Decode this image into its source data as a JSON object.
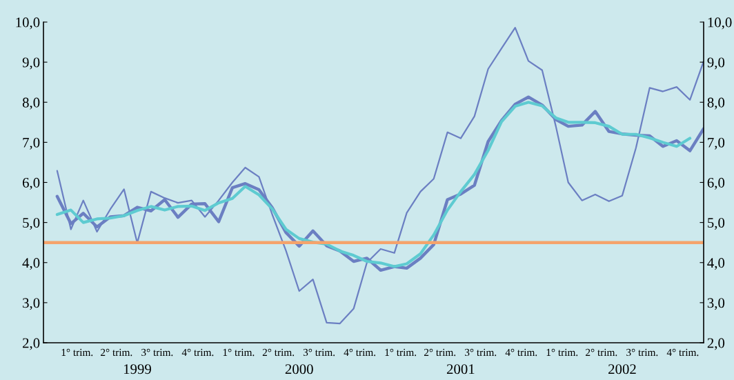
{
  "chart_data": {
    "type": "line",
    "x": [
      "1999-01",
      "1999-02",
      "1999-03",
      "1999-04",
      "1999-05",
      "1999-06",
      "1999-07",
      "1999-08",
      "1999-09",
      "1999-10",
      "1999-11",
      "1999-12",
      "2000-01",
      "2000-02",
      "2000-03",
      "2000-04",
      "2000-05",
      "2000-06",
      "2000-07",
      "2000-08",
      "2000-09",
      "2000-10",
      "2000-11",
      "2000-12",
      "2001-01",
      "2001-02",
      "2001-03",
      "2001-04",
      "2001-05",
      "2001-06",
      "2001-07",
      "2001-08",
      "2001-09",
      "2001-10",
      "2001-11",
      "2001-12",
      "2002-01",
      "2002-02",
      "2002-03",
      "2002-04",
      "2002-05",
      "2002-06",
      "2002-07",
      "2002-08",
      "2002-09",
      "2002-10",
      "2002-11",
      "2002-12",
      "2003-01"
    ],
    "series": [
      {
        "color": "#6b7fc2",
        "values": [
          6.29,
          4.83,
          5.55,
          4.77,
          5.33,
          5.83,
          4.49,
          5.77,
          5.61,
          5.49,
          5.55,
          5.14,
          5.55,
          6.0,
          6.37,
          6.14,
          5.2,
          4.3,
          3.29,
          3.58,
          2.5,
          2.48,
          2.85,
          4.0,
          4.34,
          4.24,
          5.24,
          5.77,
          6.09,
          7.25,
          7.1,
          7.65,
          8.83,
          9.34,
          9.86,
          9.03,
          8.8,
          7.4,
          6.0,
          5.55,
          5.7,
          5.53,
          5.67,
          6.86,
          8.36,
          8.27,
          8.38,
          8.06,
          9.02
        ]
      },
      {
        "color": "#6b7fc2",
        "values": [
          5.65,
          4.97,
          5.23,
          4.89,
          5.14,
          5.17,
          5.38,
          5.29,
          5.57,
          5.13,
          5.46,
          5.47,
          5.02,
          5.87,
          5.97,
          5.82,
          5.37,
          4.75,
          4.41,
          4.79,
          4.42,
          4.29,
          4.03,
          4.11,
          3.81,
          3.9,
          3.86,
          4.11,
          4.45,
          5.57,
          5.71,
          5.93,
          7.02,
          7.54,
          7.95,
          8.13,
          7.93,
          7.57,
          7.4,
          7.43,
          7.77,
          7.27,
          7.21,
          7.18,
          7.16,
          6.9,
          7.04,
          6.79,
          7.34
        ]
      },
      {
        "color": "#5ecbd1",
        "values": [
          5.2,
          5.31,
          5.0,
          5.09,
          5.11,
          5.17,
          5.3,
          5.4,
          5.31,
          5.4,
          5.41,
          5.3,
          5.49,
          5.6,
          5.9,
          5.69,
          5.34,
          4.83,
          4.6,
          4.51,
          4.46,
          4.29,
          4.18,
          4.03,
          3.99,
          3.9,
          3.97,
          4.22,
          4.69,
          5.31,
          5.77,
          6.2,
          6.8,
          7.51,
          7.9,
          8.0,
          7.91,
          7.61,
          7.5,
          7.5,
          7.49,
          7.4,
          7.2,
          7.2,
          7.11,
          7.0,
          6.9,
          7.1,
          null
        ]
      }
    ],
    "ref_lines": [
      {
        "axis": "y",
        "value": 4.5,
        "color": "#f5a36b"
      }
    ],
    "xlim": [
      "1998-12",
      "2003-01"
    ],
    "xticks": [
      {
        "value": "1999-02-15",
        "label": "1° trim."
      },
      {
        "value": "1999-05-15",
        "label": "2° trim."
      },
      {
        "value": "1999-08-15",
        "label": "3° trim."
      },
      {
        "value": "1999-11-15",
        "label": "4° trim."
      },
      {
        "value": "2000-02-15",
        "label": "1° trim."
      },
      {
        "value": "2000-05-15",
        "label": "2° trim."
      },
      {
        "value": "2000-08-15",
        "label": "3° trim."
      },
      {
        "value": "2000-11-15",
        "label": "4° trim."
      },
      {
        "value": "2001-02-15",
        "label": "1° trim."
      },
      {
        "value": "2001-05-15",
        "label": "2° trim."
      },
      {
        "value": "2001-08-15",
        "label": "3° trim."
      },
      {
        "value": "2001-11-15",
        "label": "4° trim."
      },
      {
        "value": "2002-02-15",
        "label": "1° trim."
      },
      {
        "value": "2002-05-15",
        "label": "2° trim."
      },
      {
        "value": "2002-08-15",
        "label": "3° trim."
      },
      {
        "value": "2002-11-15",
        "label": "4° trim."
      }
    ],
    "x2lim": [
      "1998-12",
      "2003-01"
    ],
    "x2ticks": [
      {
        "value": "1999-07-01",
        "label": "1999"
      },
      {
        "value": "2000-07-01",
        "label": "2000"
      },
      {
        "value": "2001-07-01",
        "label": "2001"
      },
      {
        "value": "2002-07-01",
        "label": "2002"
      }
    ],
    "ylim": [
      2,
      10
    ],
    "yticks": [
      {
        "value": 2,
        "label": "2,0"
      },
      {
        "value": 3,
        "label": "3,0"
      },
      {
        "value": 4,
        "label": "4,0"
      },
      {
        "value": 5,
        "label": "5,0"
      },
      {
        "value": 6,
        "label": "6,0"
      },
      {
        "value": 7,
        "label": "7,0"
      },
      {
        "value": 8,
        "label": "8,0"
      },
      {
        "value": 9,
        "label": "9,0"
      },
      {
        "value": 10,
        "label": "10,0"
      }
    ],
    "y2lim": [
      2,
      10
    ],
    "y2ticks": [
      {
        "value": 2,
        "label": "2,0"
      },
      {
        "value": 3,
        "label": "3,0"
      },
      {
        "value": 4,
        "label": "4,0"
      },
      {
        "value": 5,
        "label": "5,0"
      },
      {
        "value": 6,
        "label": "6,0"
      },
      {
        "value": 7,
        "label": "7,0"
      },
      {
        "value": 8,
        "label": "8,0"
      },
      {
        "value": 9,
        "label": "9,0"
      },
      {
        "value": 10,
        "label": "10,0"
      }
    ],
    "grid": false,
    "legend": false
  }
}
